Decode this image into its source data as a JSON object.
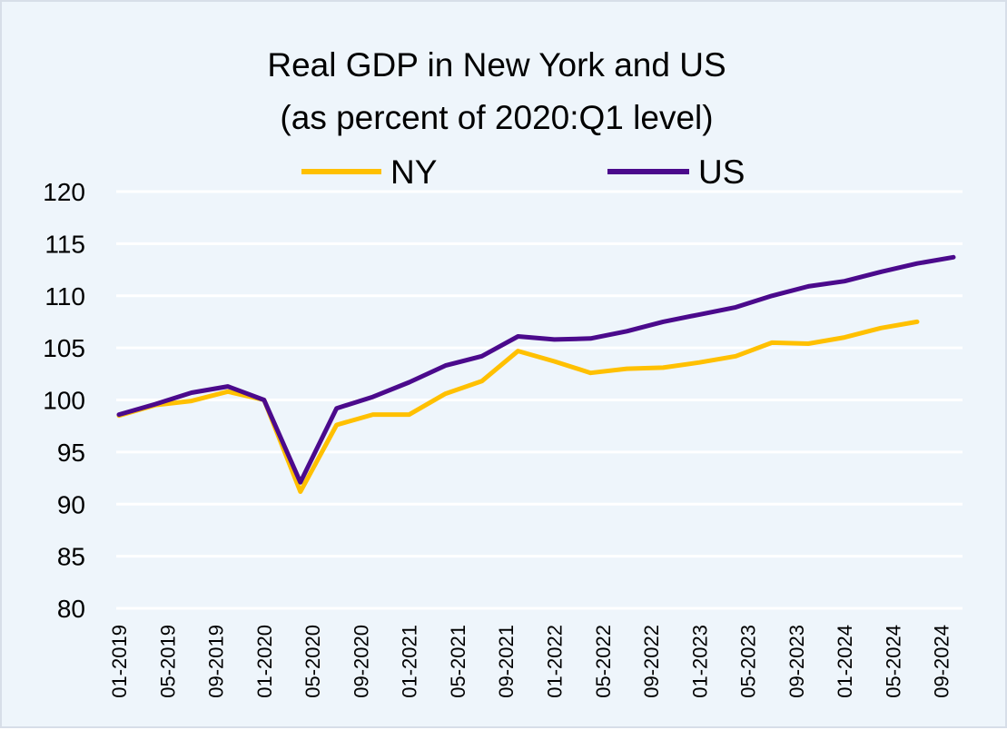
{
  "chart_data": {
    "type": "line",
    "title_lines": [
      "Real GDP in New York and US",
      "(as percent of 2020:Q1 level)"
    ],
    "xlabel": "",
    "ylabel": "",
    "ylim": [
      80,
      120
    ],
    "y_ticks": [
      "80",
      "85",
      "90",
      "95",
      "100",
      "105",
      "110",
      "115",
      "120"
    ],
    "x": [
      "01-2019",
      "04-2019",
      "07-2019",
      "10-2019",
      "01-2020",
      "04-2020",
      "07-2020",
      "10-2020",
      "01-2021",
      "04-2021",
      "07-2021",
      "10-2021",
      "01-2022",
      "04-2022",
      "07-2022",
      "10-2022",
      "01-2023",
      "04-2023",
      "07-2023",
      "10-2023",
      "01-2024",
      "04-2024",
      "07-2024",
      "10-2024"
    ],
    "x_tick_labels": [
      "01-2019",
      "05-2019",
      "09-2019",
      "01-2020",
      "05-2020",
      "09-2020",
      "01-2021",
      "05-2021",
      "09-2021",
      "01-2022",
      "05-2022",
      "09-2022",
      "01-2023",
      "05-2023",
      "09-2023",
      "01-2024",
      "05-2024",
      "09-2024"
    ],
    "grid": true,
    "legend_position": "top-center",
    "series": [
      {
        "name": "NY",
        "color": "#FFC000",
        "values": [
          98.5,
          99.5,
          99.9,
          100.8,
          100.0,
          91.2,
          97.6,
          98.6,
          98.6,
          100.6,
          101.8,
          104.7,
          103.7,
          102.6,
          103.0,
          103.1,
          103.6,
          104.2,
          105.5,
          105.4,
          106.0,
          106.9,
          107.5,
          null
        ]
      },
      {
        "name": "US",
        "color": "#4B0A8C",
        "values": [
          98.6,
          99.6,
          100.7,
          101.3,
          100.0,
          92.1,
          99.2,
          100.3,
          101.7,
          103.3,
          104.2,
          106.1,
          105.8,
          105.9,
          106.6,
          107.5,
          108.2,
          108.9,
          110.0,
          110.9,
          111.4,
          112.3,
          113.1,
          113.7
        ]
      }
    ]
  }
}
